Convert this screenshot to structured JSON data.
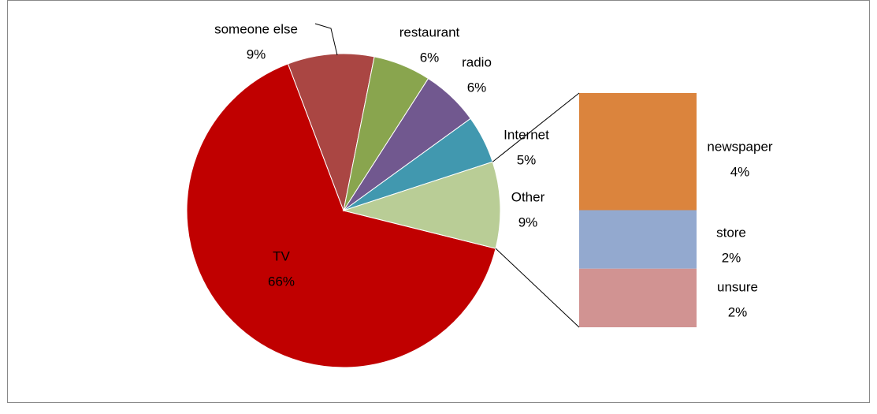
{
  "chart_data": {
    "type": "pie",
    "categories": [
      "TV",
      "someone else",
      "restaurant",
      "radio",
      "Internet",
      "Other"
    ],
    "values": [
      66,
      9,
      6,
      6,
      5,
      9
    ],
    "value_labels": [
      "66%",
      "9%",
      "6%",
      "6%",
      "5%",
      "9%"
    ],
    "colors": [
      "#c00000",
      "#aa4643",
      "#89a54e",
      "#71588f",
      "#4198af",
      "#b9cd96"
    ],
    "breakdown": {
      "categories": [
        "newspaper",
        "store",
        "unsure"
      ],
      "values": [
        4,
        2,
        2
      ],
      "value_labels": [
        "4%",
        "2%",
        "2%"
      ],
      "colors": [
        "#db843d",
        "#93a9cf",
        "#d19392"
      ]
    }
  }
}
